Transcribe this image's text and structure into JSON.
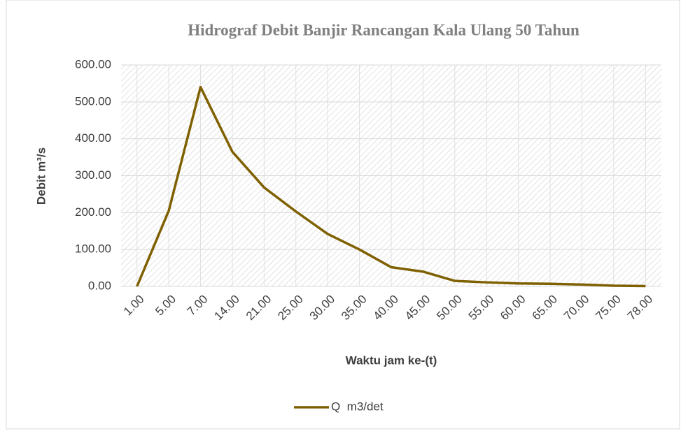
{
  "chart_data": {
    "type": "line",
    "title": "Hidrograf Debit Banjir Rancangan Kala Ulang 50 Tahun",
    "x_label": "Waktu jam ke-(t)",
    "y_label": "Debit m³/s",
    "categories": [
      "1.00",
      "5.00",
      "7.00",
      "14.00",
      "21.00",
      "25.00",
      "30.00",
      "35.00",
      "40.00",
      "45.00",
      "50.00",
      "55.00",
      "60.00",
      "65.00",
      "70.00",
      "75.00",
      "78.00"
    ],
    "series": [
      {
        "name": "Q  m3/det",
        "color": "#7f6000",
        "values": [
          0,
          205,
          540,
          365,
          268,
          203,
          142,
          100,
          52,
          40,
          15,
          11,
          8,
          7,
          5,
          2,
          1
        ]
      }
    ],
    "ylim": [
      0,
      600
    ],
    "yticks": [
      {
        "value": 0,
        "label": "0.00"
      },
      {
        "value": 100,
        "label": "100.00"
      },
      {
        "value": 200,
        "label": "200.00"
      },
      {
        "value": 300,
        "label": "300.00"
      },
      {
        "value": 400,
        "label": "400.00"
      },
      {
        "value": 500,
        "label": "500.00"
      },
      {
        "value": 600,
        "label": "600.00"
      }
    ],
    "grid": true,
    "legend": "bottom"
  }
}
